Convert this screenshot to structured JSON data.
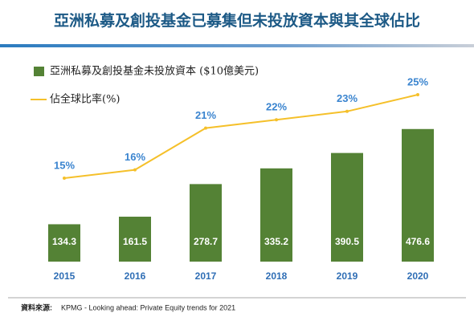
{
  "chart_data": {
    "type": "bar-line",
    "title": "亞洲私募及創投基金已募集但未投放資本與其全球佔比",
    "categories": [
      "2015",
      "2016",
      "2017",
      "2018",
      "2019",
      "2020"
    ],
    "series": [
      {
        "name": "亞洲私募及創投基金未投放資本 ($10億美元)",
        "type": "bar",
        "color": "#548235",
        "values": [
          134.3,
          161.5,
          278.7,
          335.2,
          390.5,
          476.6
        ]
      },
      {
        "name": "佔全球比率(%)",
        "type": "line",
        "axis": "y2",
        "color": "#f5c02a",
        "values": [
          15,
          16,
          21,
          22,
          23,
          25
        ],
        "value_labels": [
          "15%",
          "16%",
          "21%",
          "22%",
          "23%",
          "25%"
        ]
      }
    ],
    "ylim": [
      0,
      600
    ],
    "y2lim": [
      5,
      25
    ],
    "source_label": "資料來源:",
    "source": "KPMG - Looking ahead: Private Equity trends for 2021"
  }
}
